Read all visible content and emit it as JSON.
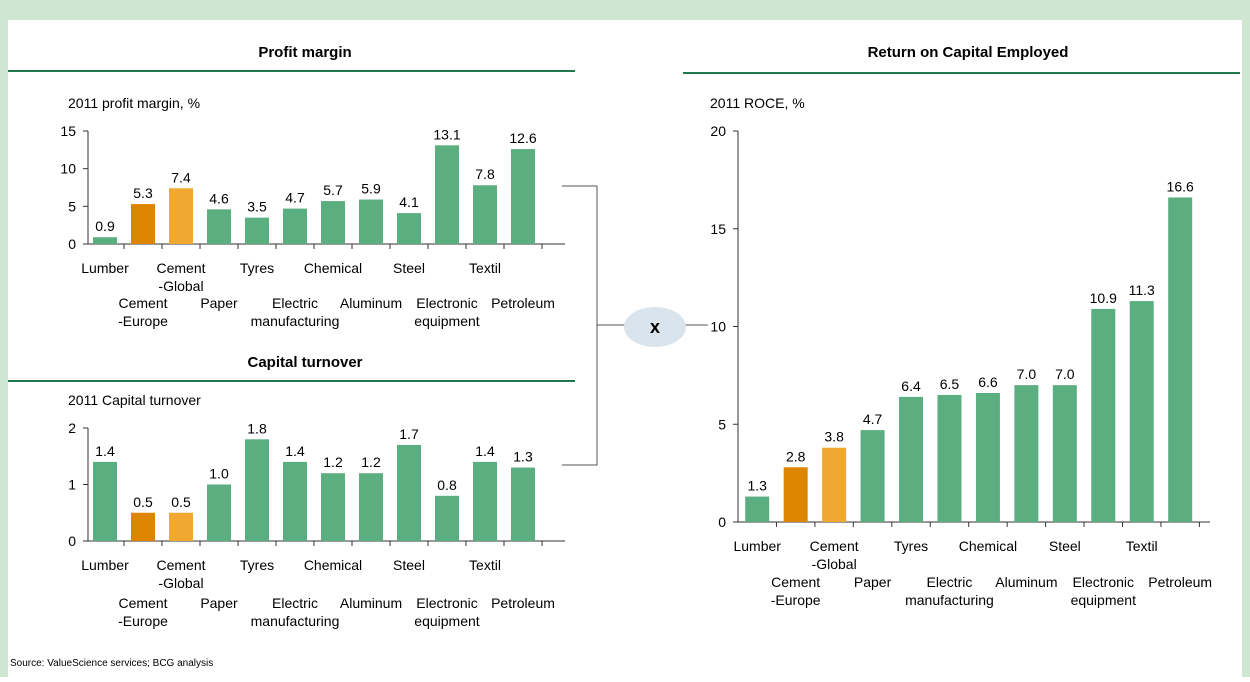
{
  "chart_data": [
    {
      "type": "bar",
      "title": "Profit margin",
      "subtitle": "2011 profit margin, %",
      "categories": [
        [
          "Lumber"
        ],
        [
          "Cement",
          "-Europe"
        ],
        [
          "Cement",
          "-Global"
        ],
        [
          "Paper"
        ],
        [
          "Tyres"
        ],
        [
          "Electric",
          "manufacturing"
        ],
        [
          "Chemical"
        ],
        [
          "Aluminum"
        ],
        [
          "Steel"
        ],
        [
          "Electronic",
          "equipment"
        ],
        [
          "Textil"
        ],
        [
          "Petroleum"
        ]
      ],
      "values": [
        0.9,
        5.3,
        7.4,
        4.6,
        3.5,
        4.7,
        5.7,
        5.9,
        4.1,
        13.1,
        7.8,
        12.6
      ],
      "value_labels": [
        "0.9",
        "5.3",
        "7.4",
        "4.6",
        "3.5",
        "4.7",
        "5.7",
        "5.9",
        "4.1",
        "13.1",
        "7.8",
        "12.6"
      ],
      "colors": [
        "#5aae80",
        "#dd8500",
        "#f0a830",
        "#5aae80",
        "#5aae80",
        "#5aae80",
        "#5aae80",
        "#5aae80",
        "#5aae80",
        "#5aae80",
        "#5aae80",
        "#5aae80"
      ],
      "ylim": [
        0,
        15
      ],
      "yticks": [
        0,
        5,
        10,
        15
      ]
    },
    {
      "type": "bar",
      "title": "Capital turnover",
      "subtitle": "2011 Capital turnover",
      "categories": [
        [
          "Lumber"
        ],
        [
          "Cement",
          "-Europe"
        ],
        [
          "Cement",
          "-Global"
        ],
        [
          "Paper"
        ],
        [
          "Tyres"
        ],
        [
          "Electric",
          "manufacturing"
        ],
        [
          "Chemical"
        ],
        [
          "Aluminum"
        ],
        [
          "Steel"
        ],
        [
          "Electronic",
          "equipment"
        ],
        [
          "Textil"
        ],
        [
          "Petroleum"
        ]
      ],
      "values": [
        1.4,
        0.5,
        0.5,
        1.0,
        1.8,
        1.4,
        1.2,
        1.2,
        1.7,
        0.8,
        1.4,
        1.3
      ],
      "value_labels": [
        "1.4",
        "0.5",
        "0.5",
        "1.0",
        "1.8",
        "1.4",
        "1.2",
        "1.2",
        "1.7",
        "0.8",
        "1.4",
        "1.3"
      ],
      "colors": [
        "#5aae80",
        "#dd8500",
        "#f0a830",
        "#5aae80",
        "#5aae80",
        "#5aae80",
        "#5aae80",
        "#5aae80",
        "#5aae80",
        "#5aae80",
        "#5aae80",
        "#5aae80"
      ],
      "ylim": [
        0,
        2
      ],
      "yticks": [
        0,
        1,
        2
      ]
    },
    {
      "type": "bar",
      "title": "Return on Capital Employed",
      "subtitle": "2011 ROCE, %",
      "categories": [
        [
          "Lumber"
        ],
        [
          "Cement",
          "-Europe"
        ],
        [
          "Cement",
          "-Global"
        ],
        [
          "Paper"
        ],
        [
          "Tyres"
        ],
        [
          "Electric",
          "manufacturing"
        ],
        [
          "Chemical"
        ],
        [
          "Aluminum"
        ],
        [
          "Steel"
        ],
        [
          "Electronic",
          "equipment"
        ],
        [
          "Textil"
        ],
        [
          "Petroleum"
        ]
      ],
      "values": [
        1.3,
        2.8,
        3.8,
        4.7,
        6.4,
        6.5,
        6.6,
        7.0,
        7.0,
        10.9,
        11.3,
        16.6
      ],
      "value_labels": [
        "1.3",
        "2.8",
        "3.8",
        "4.7",
        "6.4",
        "6.5",
        "6.6",
        "7.0",
        "7.0",
        "10.9",
        "11.3",
        "16.6"
      ],
      "colors": [
        "#5aae80",
        "#dd8500",
        "#f0a830",
        "#5aae80",
        "#5aae80",
        "#5aae80",
        "#5aae80",
        "#5aae80",
        "#5aae80",
        "#5aae80",
        "#5aae80",
        "#5aae80"
      ],
      "ylim": [
        0,
        20
      ],
      "yticks": [
        0,
        5,
        10,
        15,
        20
      ]
    }
  ],
  "operator": "x",
  "source": "Source: ValueScience services; BCG analysis"
}
